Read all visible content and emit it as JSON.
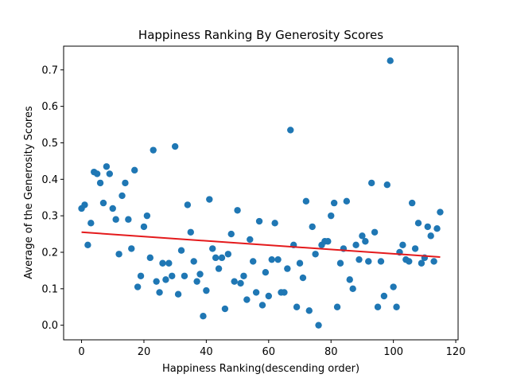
{
  "chart_data": {
    "type": "scatter",
    "title": "Happiness Ranking By Generosity Scores",
    "xlabel": "Happiness Ranking(descending order)",
    "ylabel": "Average of the Generosity Scores",
    "xlim": [
      -5.75,
      120.75
    ],
    "ylim": [
      -0.04,
      0.765
    ],
    "xticks": [
      0,
      20,
      40,
      60,
      80,
      100,
      120
    ],
    "yticks": [
      0.0,
      0.1,
      0.2,
      0.3,
      0.4,
      0.5,
      0.6,
      0.7
    ],
    "grid": false,
    "colors": {
      "points": "#1f77b4",
      "trend": "#e41a1c"
    },
    "points": [
      [
        0,
        0.32
      ],
      [
        1,
        0.33
      ],
      [
        2,
        0.22
      ],
      [
        3,
        0.28
      ],
      [
        4,
        0.42
      ],
      [
        5,
        0.415
      ],
      [
        6,
        0.39
      ],
      [
        7,
        0.335
      ],
      [
        8,
        0.435
      ],
      [
        9,
        0.415
      ],
      [
        10,
        0.32
      ],
      [
        11,
        0.29
      ],
      [
        12,
        0.195
      ],
      [
        13,
        0.355
      ],
      [
        14,
        0.39
      ],
      [
        15,
        0.29
      ],
      [
        16,
        0.21
      ],
      [
        17,
        0.425
      ],
      [
        18,
        0.105
      ],
      [
        19,
        0.135
      ],
      [
        20,
        0.27
      ],
      [
        21,
        0.3
      ],
      [
        22,
        0.185
      ],
      [
        23,
        0.48
      ],
      [
        24,
        0.12
      ],
      [
        25,
        0.09
      ],
      [
        26,
        0.17
      ],
      [
        27,
        0.125
      ],
      [
        28,
        0.17
      ],
      [
        29,
        0.135
      ],
      [
        30,
        0.49
      ],
      [
        31,
        0.085
      ],
      [
        32,
        0.205
      ],
      [
        33,
        0.135
      ],
      [
        34,
        0.33
      ],
      [
        35,
        0.255
      ],
      [
        36,
        0.175
      ],
      [
        37,
        0.12
      ],
      [
        38,
        0.14
      ],
      [
        39,
        0.025
      ],
      [
        40,
        0.095
      ],
      [
        41,
        0.345
      ],
      [
        42,
        0.21
      ],
      [
        43,
        0.185
      ],
      [
        44,
        0.155
      ],
      [
        45,
        0.185
      ],
      [
        46,
        0.045
      ],
      [
        47,
        0.195
      ],
      [
        48,
        0.25
      ],
      [
        49,
        0.12
      ],
      [
        50,
        0.315
      ],
      [
        51,
        0.115
      ],
      [
        52,
        0.135
      ],
      [
        53,
        0.07
      ],
      [
        54,
        0.235
      ],
      [
        55,
        0.175
      ],
      [
        56,
        0.09
      ],
      [
        57,
        0.285
      ],
      [
        58,
        0.055
      ],
      [
        59,
        0.145
      ],
      [
        60,
        0.08
      ],
      [
        61,
        0.18
      ],
      [
        62,
        0.28
      ],
      [
        63,
        0.18
      ],
      [
        64,
        0.09
      ],
      [
        65,
        0.09
      ],
      [
        66,
        0.155
      ],
      [
        67,
        0.535
      ],
      [
        68,
        0.22
      ],
      [
        69,
        0.05
      ],
      [
        70,
        0.17
      ],
      [
        71,
        0.13
      ],
      [
        72,
        0.34
      ],
      [
        73,
        0.04
      ],
      [
        74,
        0.27
      ],
      [
        75,
        0.195
      ],
      [
        76,
        0.0
      ],
      [
        77,
        0.22
      ],
      [
        78,
        0.23
      ],
      [
        79,
        0.23
      ],
      [
        80,
        0.3
      ],
      [
        81,
        0.335
      ],
      [
        82,
        0.05
      ],
      [
        83,
        0.17
      ],
      [
        84,
        0.21
      ],
      [
        85,
        0.34
      ],
      [
        86,
        0.125
      ],
      [
        87,
        0.1
      ],
      [
        88,
        0.22
      ],
      [
        89,
        0.18
      ],
      [
        90,
        0.245
      ],
      [
        91,
        0.23
      ],
      [
        92,
        0.175
      ],
      [
        93,
        0.39
      ],
      [
        94,
        0.255
      ],
      [
        95,
        0.05
      ],
      [
        96,
        0.175
      ],
      [
        97,
        0.08
      ],
      [
        98,
        0.385
      ],
      [
        99,
        0.725
      ],
      [
        100,
        0.105
      ],
      [
        101,
        0.05
      ],
      [
        102,
        0.2
      ],
      [
        103,
        0.22
      ],
      [
        104,
        0.18
      ],
      [
        105,
        0.175
      ],
      [
        106,
        0.335
      ],
      [
        107,
        0.21
      ],
      [
        108,
        0.28
      ],
      [
        109,
        0.17
      ],
      [
        110,
        0.185
      ],
      [
        111,
        0.27
      ],
      [
        112,
        0.245
      ],
      [
        113,
        0.175
      ],
      [
        114,
        0.265
      ],
      [
        115,
        0.31
      ]
    ],
    "trend_line": {
      "x": [
        0,
        115
      ],
      "y": [
        0.255,
        0.187
      ]
    }
  }
}
